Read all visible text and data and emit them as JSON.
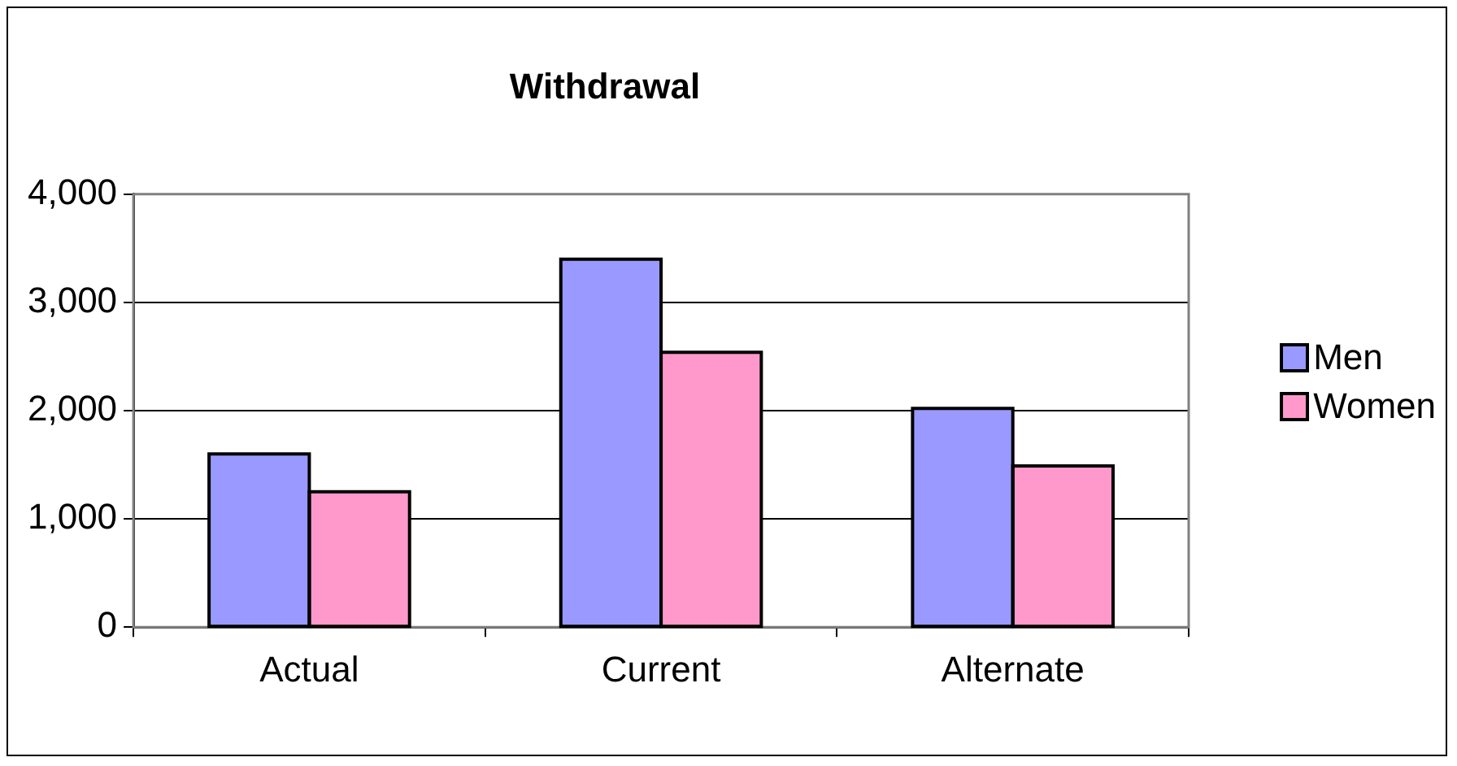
{
  "chart_data": {
    "type": "bar",
    "title": "Withdrawal",
    "categories": [
      "Actual",
      "Current",
      "Alternate"
    ],
    "series": [
      {
        "name": "Men",
        "color": "#9999ff",
        "values": [
          1600,
          3400,
          2020
        ]
      },
      {
        "name": "Women",
        "color": "#ff99cc",
        "values": [
          1250,
          2540,
          1490
        ]
      }
    ],
    "ylim": [
      0,
      4000
    ],
    "yticks": [
      0,
      {
        "value": 1000,
        "label": "1,000"
      },
      {
        "value": 2000,
        "label": "2,000"
      },
      {
        "value": 3000,
        "label": "3,000"
      },
      {
        "value": 4000,
        "label": "4,000"
      }
    ],
    "grid": "y",
    "legend": "right"
  }
}
